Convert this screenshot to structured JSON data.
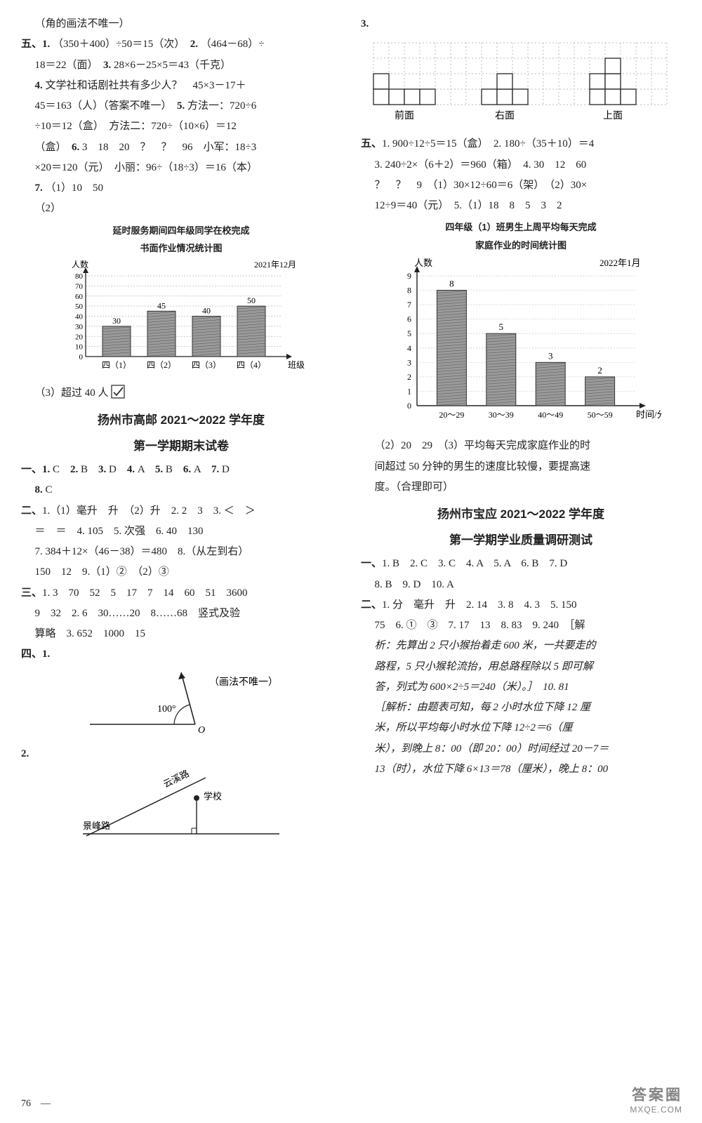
{
  "col_left": {
    "line_angle": "（角的画法不唯一）",
    "sec5_label": "五、",
    "sec5_q1": "（350＋400）÷50＝15（次）",
    "sec5_q2": "（464－68）÷",
    "sec5_q2b": "18＝22（面）",
    "sec5_q3": "28×6－25×5＝43（千克）",
    "sec5_q4a": "文学社和话剧社共有多少人？　45×3－17＋",
    "sec5_q4b": "45＝163（人）（答案不唯一）",
    "sec5_q5": "方法一：720÷6",
    "sec5_q5b": "÷10＝12（盒）　方法二：720÷（10×6）＝12",
    "sec5_q5c": "（盒）",
    "sec5_q6": "3　18　20　？　？　96　小军：18÷3",
    "sec5_q6b": "×20＝120（元）　小丽：96÷（18÷3）＝16（本）",
    "sec5_q7": "（1）10　50",
    "sec5_q7_2": "（2）",
    "chart1": {
      "title1": "延时服务期间四年级同学在校完成",
      "title2": "书面作业情况统计图",
      "y_label": "人数",
      "date": "2021年12月",
      "x_label": "班级",
      "categories": [
        "四（1）",
        "四（2）",
        "四（3）",
        "四（4）"
      ],
      "values": [
        30,
        45,
        40,
        50
      ],
      "y_ticks": [
        0,
        10,
        20,
        30,
        40,
        50,
        60,
        70,
        80
      ],
      "bar_fill": "#9a9a9a",
      "bar_hatch": "#666",
      "grid": "#444",
      "bg": "#fff"
    },
    "sec5_q7_3a": "（3）超过 40 人",
    "checkmark": "✓",
    "title1": "扬州市高邮 2021～2022 学年度",
    "title2": "第一学期期末试卷",
    "gy_s1": "一、",
    "gy_s1_line1": "C",
    "gy_s1_items": "1. C　2. B　3. D　4. A　5. B　6. A　7. D",
    "gy_s1_line2": "8. C",
    "gy_s2": "二、",
    "gy_s2_l1": "1.（1）毫升　升　（2）升　2. 2　3　3. ＜　＞",
    "gy_s2_l2": "＝　＝　4. 105　5. 次强　6. 40　130",
    "gy_s2_l3": "7. 384＋12×（46－38）＝480　8.（从左到右）",
    "gy_s2_l4": "150　12　9.（1）②　（2）③",
    "gy_s3": "三、",
    "gy_s3_l1": "1. 3　70　52　5　17　7　14　60　51　3600",
    "gy_s3_l2": "9　32　2. 6　30……20　8……68　竖式及验",
    "gy_s3_l3": "算略　3. 652　1000　15",
    "gy_s4": "四、1.",
    "gy_s4_1_note": "（画法不唯一）",
    "angle_label": "100°",
    "angle_O": "O",
    "gy_s4_2": "2.",
    "road1": "云溪路",
    "road2": "景峰路",
    "school": "学校"
  },
  "col_right": {
    "top3": "3.",
    "views": {
      "front": "前面",
      "right": "右面",
      "top": "上面",
      "grid_color": "#bbb",
      "fill": "#fff",
      "stroke": "#333"
    },
    "sec5": "五、",
    "sec5_l1": "1. 900÷12÷5＝15（盒）　2. 180÷（35＋10）＝4",
    "sec5_l2": "3. 240÷2×（6＋2）＝960（箱）　4. 30　12　60",
    "sec5_l3": "？　？　9　（1）30×12÷60＝6（架）　（2）30×",
    "sec5_l4": "12÷9＝40（元）　5.（1）18　8　5　3　2",
    "chart2": {
      "title1": "四年级（1）班男生上周平均每天完成",
      "title2": "家庭作业的时间统计图",
      "y_label": "人数",
      "date": "2022年1月",
      "x_label": "时间/分",
      "categories": [
        "20～29",
        "30～39",
        "40～49",
        "50～59"
      ],
      "values": [
        8,
        5,
        3,
        2
      ],
      "y_ticks": [
        0,
        1,
        2,
        3,
        4,
        5,
        6,
        7,
        8,
        9
      ],
      "bar_fill": "#9a9a9a",
      "grid": "#555",
      "bg": "#fff"
    },
    "after_chart_l1": "（2）20　29　（3）平均每天完成家庭作业的时",
    "after_chart_l2": "间超过 50 分钟的男生的速度比较慢，要提高速",
    "after_chart_l3": "度。（合理即可）",
    "title1": "扬州市宝应 2021～2022 学年度",
    "title2": "第一学期学业质量调研测试",
    "by_s1": "一、",
    "by_s1_l1": "1. B　2. C　3. C　4. A　5. A　6. B　7. D",
    "by_s1_l2": "8. B　9. D　10. A",
    "by_s2": "二、",
    "by_s2_l1": "1. 分　毫升　升　2. 14　3. 8　4. 3　5. 150",
    "by_s2_l2": "75　6. ①　③　7. 17　13　8. 83　9. 240　［解",
    "by_s2_l3": "析：先算出 2 只小猴抬着走 600 米，一共要走的",
    "by_s2_l4": "路程，5 只小猴轮流抬，用总路程除以 5 即可解",
    "by_s2_l5": "答，列式为 600×2÷5＝240（米）。］　10. 81",
    "by_s2_l6": "［解析：由题表可知，每 2 小时水位下降 12 厘",
    "by_s2_l7": "米，所以平均每小时水位下降 12÷2＝6（厘",
    "by_s2_l8": "米），到晚上 8：00（即 20：00）时间经过 20－7＝",
    "by_s2_l9": "13（时），水位下降 6×13＝78（厘米），晚上 8：00"
  },
  "footer": {
    "page": "76",
    "wm1": "答案圈",
    "wm2": "MXQE.COM"
  }
}
